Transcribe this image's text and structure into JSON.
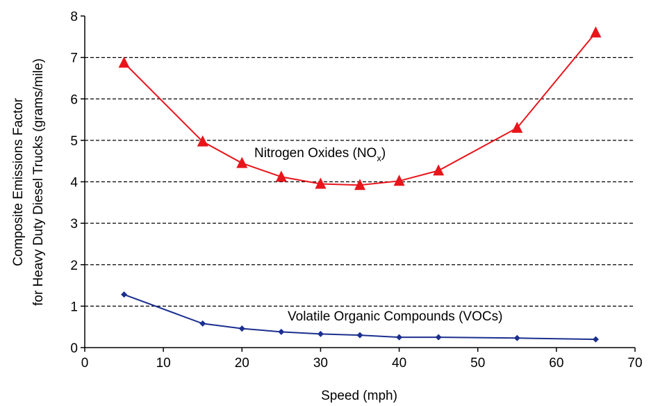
{
  "chart_data": {
    "type": "line",
    "xlabel": "Speed (mph)",
    "ylabel_line1": "Composite Emissions Factor",
    "ylabel_line2": "for Heavy Duty Diesel Trucks (grams/mile)",
    "xlim": [
      0,
      70
    ],
    "ylim": [
      0,
      8
    ],
    "x_ticks": [
      0,
      10,
      20,
      30,
      40,
      50,
      60,
      70
    ],
    "y_ticks": [
      0,
      1,
      2,
      3,
      4,
      5,
      6,
      7,
      8
    ],
    "grid": "horizontal dashed at 1-7",
    "x": [
      5,
      15,
      20,
      25,
      30,
      35,
      40,
      45,
      55,
      65
    ],
    "series": [
      {
        "name": "Nitrogen Oxides (NOx)",
        "label_main": "Nitrogen Oxides (NO",
        "label_sub": "x",
        "label_end": ")",
        "color": "#e8151b",
        "marker": "triangle",
        "values": [
          6.87,
          4.97,
          4.45,
          4.12,
          3.95,
          3.92,
          4.02,
          4.27,
          5.3,
          7.6
        ]
      },
      {
        "name": "Volatile Organic Compounds (VOCs)",
        "label_main": "Volatile Organic Compounds (VOCs)",
        "color": "#1b2f8f",
        "marker": "diamond",
        "values": [
          1.28,
          0.58,
          0.46,
          0.38,
          0.33,
          0.3,
          0.25,
          0.25,
          0.23,
          0.2
        ]
      }
    ]
  }
}
